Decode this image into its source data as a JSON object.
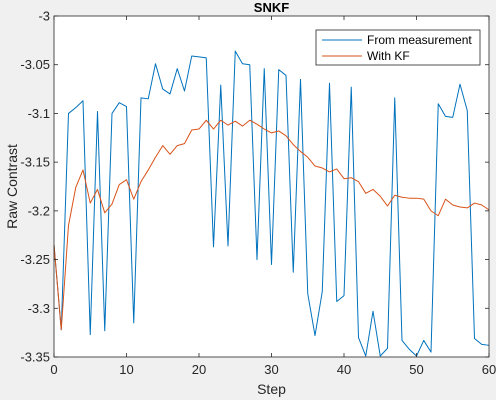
{
  "chart_data": {
    "type": "line",
    "title": "SNKF",
    "xlabel": "Step",
    "ylabel": "Raw Contrast",
    "xlim": [
      0,
      60
    ],
    "ylim": [
      -3.35,
      -3
    ],
    "xticks": [
      0,
      10,
      20,
      30,
      40,
      50,
      60
    ],
    "yticks": [
      -3,
      -3.05,
      -3.1,
      -3.15,
      -3.2,
      -3.25,
      -3.3,
      -3.35
    ],
    "xtick_labels": [
      "0",
      "10",
      "20",
      "30",
      "40",
      "50",
      "60"
    ],
    "ytick_labels": [
      "-3",
      "-3.05",
      "-3.1",
      "-3.15",
      "-3.2",
      "-3.25",
      "-3.3",
      "-3.35"
    ],
    "grid": false,
    "legend_position": "top-right",
    "x": [
      0,
      1,
      2,
      3,
      4,
      5,
      6,
      7,
      8,
      9,
      10,
      11,
      12,
      13,
      14,
      15,
      16,
      17,
      18,
      19,
      20,
      21,
      22,
      23,
      24,
      25,
      26,
      27,
      28,
      29,
      30,
      31,
      32,
      33,
      34,
      35,
      36,
      37,
      38,
      39,
      40,
      41,
      42,
      43,
      44,
      45,
      46,
      47,
      48,
      49,
      50,
      51,
      52,
      53,
      54,
      55,
      56,
      57,
      58,
      59,
      60
    ],
    "series": [
      {
        "name": "From measurement",
        "color": "#0072bd",
        "values": [
          -3.235,
          -3.322,
          -3.1,
          -3.094,
          -3.087,
          -3.327,
          -3.098,
          -3.323,
          -3.1,
          -3.089,
          -3.093,
          -3.315,
          -3.084,
          -3.085,
          -3.049,
          -3.075,
          -3.08,
          -3.054,
          -3.077,
          -3.041,
          -3.042,
          -3.043,
          -3.237,
          -3.071,
          -3.236,
          -3.036,
          -3.049,
          -3.05,
          -3.25,
          -3.054,
          -3.255,
          -3.055,
          -3.061,
          -3.263,
          -3.065,
          -3.285,
          -3.328,
          -3.283,
          -3.069,
          -3.293,
          -3.287,
          -3.073,
          -3.33,
          -3.349,
          -3.303,
          -3.349,
          -3.341,
          -3.084,
          -3.333,
          -3.342,
          -3.349,
          -3.333,
          -3.345,
          -3.09,
          -3.103,
          -3.104,
          -3.07,
          -3.097,
          -3.331,
          -3.337,
          -3.338
        ]
      },
      {
        "name": "With KF",
        "color": "#d95319",
        "values": [
          -3.235,
          -3.322,
          -3.215,
          -3.176,
          -3.158,
          -3.192,
          -3.178,
          -3.202,
          -3.193,
          -3.173,
          -3.168,
          -3.188,
          -3.17,
          -3.158,
          -3.145,
          -3.133,
          -3.142,
          -3.133,
          -3.131,
          -3.117,
          -3.116,
          -3.107,
          -3.116,
          -3.107,
          -3.112,
          -3.108,
          -3.113,
          -3.107,
          -3.111,
          -3.116,
          -3.12,
          -3.118,
          -3.123,
          -3.132,
          -3.139,
          -3.145,
          -3.154,
          -3.156,
          -3.16,
          -3.157,
          -3.167,
          -3.166,
          -3.17,
          -3.182,
          -3.178,
          -3.185,
          -3.195,
          -3.184,
          -3.186,
          -3.187,
          -3.187,
          -3.188,
          -3.2,
          -3.205,
          -3.188,
          -3.194,
          -3.196,
          -3.197,
          -3.192,
          -3.194,
          -3.199
        ]
      }
    ]
  }
}
